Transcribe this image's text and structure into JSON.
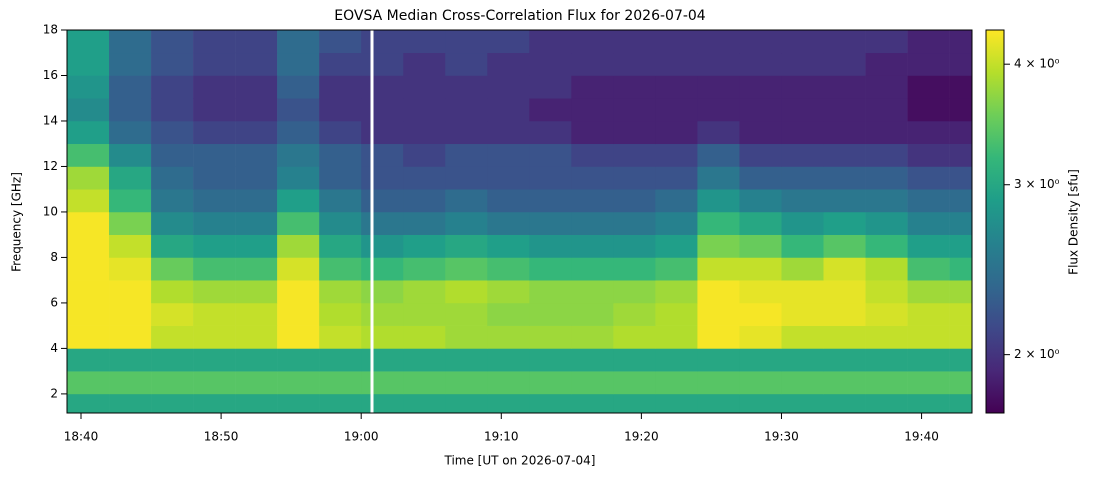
{
  "chart_data": {
    "type": "heatmap",
    "title": "EOVSA Median Cross-Correlation Flux for 2026-07-04",
    "x_label": "Time [UT on 2026-07-04]",
    "y_label": "Frequency [GHz]",
    "colorbar_label": "Flux Density [sfu]",
    "colormap": "viridis",
    "color_scale": "log",
    "xlim": [
      1119,
      1183.6
    ],
    "xticks": [
      {
        "value": 1120,
        "label": "18:40"
      },
      {
        "value": 1130,
        "label": "18:50"
      },
      {
        "value": 1140,
        "label": "19:00"
      },
      {
        "value": 1150,
        "label": "19:10"
      },
      {
        "value": 1160,
        "label": "19:20"
      },
      {
        "value": 1170,
        "label": "19:30"
      },
      {
        "value": 1180,
        "label": "19:40"
      }
    ],
    "ylim": [
      1.16,
      18
    ],
    "yticks": [
      2,
      4,
      6,
      8,
      10,
      12,
      14,
      16,
      18
    ],
    "clim": [
      1.74,
      4.34
    ],
    "cticks": [
      {
        "value": 2,
        "label": "2 × 10⁰"
      },
      {
        "value": 3,
        "label": "3 × 10⁰"
      },
      {
        "value": 4,
        "label": "4 × 10⁰"
      }
    ],
    "x_edges": [
      1119,
      1122,
      1125,
      1128,
      1131,
      1134,
      1137,
      1140,
      1143,
      1146,
      1149,
      1152,
      1155,
      1158,
      1161,
      1164,
      1167,
      1170,
      1173,
      1176,
      1179,
      1182,
      1183.6
    ],
    "y_edges": [
      1.16,
      2,
      3,
      4,
      5,
      6,
      7,
      8,
      9,
      10,
      11,
      12,
      13,
      14,
      15,
      16,
      17,
      18
    ],
    "values": [
      [
        3.0,
        3.0,
        3.0,
        3.0,
        3.0,
        3.0,
        3.0,
        3.0,
        3.0,
        3.0,
        3.0,
        3.0,
        3.0,
        3.0,
        3.0,
        3.0,
        3.0,
        3.0,
        3.0,
        3.0,
        3.0,
        3.0
      ],
      [
        3.4,
        3.4,
        3.4,
        3.4,
        3.4,
        3.4,
        3.4,
        3.4,
        3.4,
        3.4,
        3.4,
        3.4,
        3.4,
        3.4,
        3.4,
        3.4,
        3.4,
        3.4,
        3.4,
        3.4,
        3.4,
        3.4
      ],
      [
        3.0,
        3.0,
        3.0,
        3.0,
        3.0,
        3.0,
        3.0,
        3.0,
        3.0,
        3.0,
        3.0,
        3.0,
        3.0,
        3.0,
        3.0,
        3.0,
        3.0,
        3.0,
        3.0,
        3.0,
        3.0,
        3.0
      ],
      [
        4.3,
        4.3,
        4.0,
        4.0,
        4.0,
        4.3,
        4.0,
        3.9,
        3.9,
        3.8,
        3.8,
        3.8,
        3.8,
        3.9,
        3.9,
        4.3,
        4.2,
        4.0,
        4.0,
        4.0,
        4.0,
        4.0
      ],
      [
        4.3,
        4.3,
        4.1,
        4.0,
        4.0,
        4.3,
        3.9,
        3.8,
        3.8,
        3.8,
        3.7,
        3.7,
        3.7,
        3.8,
        3.9,
        4.3,
        4.3,
        4.2,
        4.2,
        4.1,
        4.0,
        4.0
      ],
      [
        4.3,
        4.3,
        3.9,
        3.8,
        3.8,
        4.3,
        3.8,
        3.7,
        3.8,
        3.9,
        3.8,
        3.7,
        3.7,
        3.7,
        3.8,
        4.3,
        4.2,
        4.2,
        4.2,
        4.0,
        3.8,
        3.8
      ],
      [
        4.3,
        4.2,
        3.5,
        3.3,
        3.3,
        4.1,
        3.3,
        3.2,
        3.3,
        3.4,
        3.3,
        3.2,
        3.2,
        3.2,
        3.3,
        4.0,
        4.0,
        3.8,
        4.1,
        3.9,
        3.3,
        3.2
      ],
      [
        4.3,
        4.0,
        3.0,
        2.9,
        2.9,
        3.8,
        3.0,
        2.8,
        2.9,
        3.0,
        2.9,
        2.8,
        2.8,
        2.8,
        2.9,
        3.6,
        3.5,
        3.2,
        3.4,
        3.2,
        2.9,
        2.9
      ],
      [
        4.3,
        3.6,
        2.7,
        2.6,
        2.6,
        3.3,
        2.7,
        2.5,
        2.5,
        2.6,
        2.5,
        2.5,
        2.5,
        2.5,
        2.6,
        3.2,
        3.0,
        2.8,
        2.9,
        2.8,
        2.6,
        2.6
      ],
      [
        4.0,
        3.2,
        2.5,
        2.4,
        2.4,
        2.9,
        2.5,
        2.3,
        2.3,
        2.4,
        2.3,
        2.3,
        2.3,
        2.3,
        2.4,
        2.8,
        2.6,
        2.5,
        2.5,
        2.5,
        2.4,
        2.4
      ],
      [
        3.8,
        3.0,
        2.4,
        2.3,
        2.3,
        2.6,
        2.3,
        2.2,
        2.2,
        2.2,
        2.2,
        2.2,
        2.2,
        2.2,
        2.2,
        2.5,
        2.3,
        2.3,
        2.3,
        2.3,
        2.2,
        2.2
      ],
      [
        3.3,
        2.7,
        2.3,
        2.3,
        2.3,
        2.5,
        2.3,
        2.2,
        2.1,
        2.2,
        2.2,
        2.2,
        2.1,
        2.1,
        2.1,
        2.3,
        2.1,
        2.1,
        2.1,
        2.1,
        2.0,
        2.0
      ],
      [
        2.9,
        2.4,
        2.2,
        2.1,
        2.1,
        2.3,
        2.1,
        2.0,
        2.0,
        2.0,
        2.0,
        2.0,
        1.9,
        1.9,
        1.9,
        2.0,
        1.9,
        1.9,
        1.9,
        1.9,
        1.9,
        1.9
      ],
      [
        2.7,
        2.3,
        2.1,
        2.0,
        2.0,
        2.2,
        2.0,
        2.0,
        2.0,
        2.0,
        2.0,
        1.9,
        1.9,
        1.9,
        1.9,
        1.9,
        1.9,
        1.9,
        1.9,
        1.9,
        1.8,
        1.8
      ],
      [
        2.8,
        2.3,
        2.1,
        2.0,
        2.0,
        2.3,
        2.0,
        2.0,
        2.0,
        2.0,
        2.0,
        2.0,
        1.9,
        1.9,
        1.9,
        1.9,
        1.9,
        1.9,
        1.9,
        1.9,
        1.8,
        1.8
      ],
      [
        2.9,
        2.4,
        2.2,
        2.1,
        2.1,
        2.4,
        2.1,
        2.1,
        2.0,
        2.1,
        2.0,
        2.0,
        2.0,
        2.0,
        2.0,
        2.0,
        2.0,
        2.0,
        2.0,
        1.9,
        1.9,
        1.9
      ],
      [
        2.9,
        2.4,
        2.2,
        2.1,
        2.1,
        2.4,
        2.2,
        2.1,
        2.1,
        2.1,
        2.1,
        2.0,
        2.0,
        2.0,
        2.0,
        2.0,
        2.0,
        2.0,
        2.0,
        2.0,
        1.9,
        1.9
      ]
    ]
  }
}
